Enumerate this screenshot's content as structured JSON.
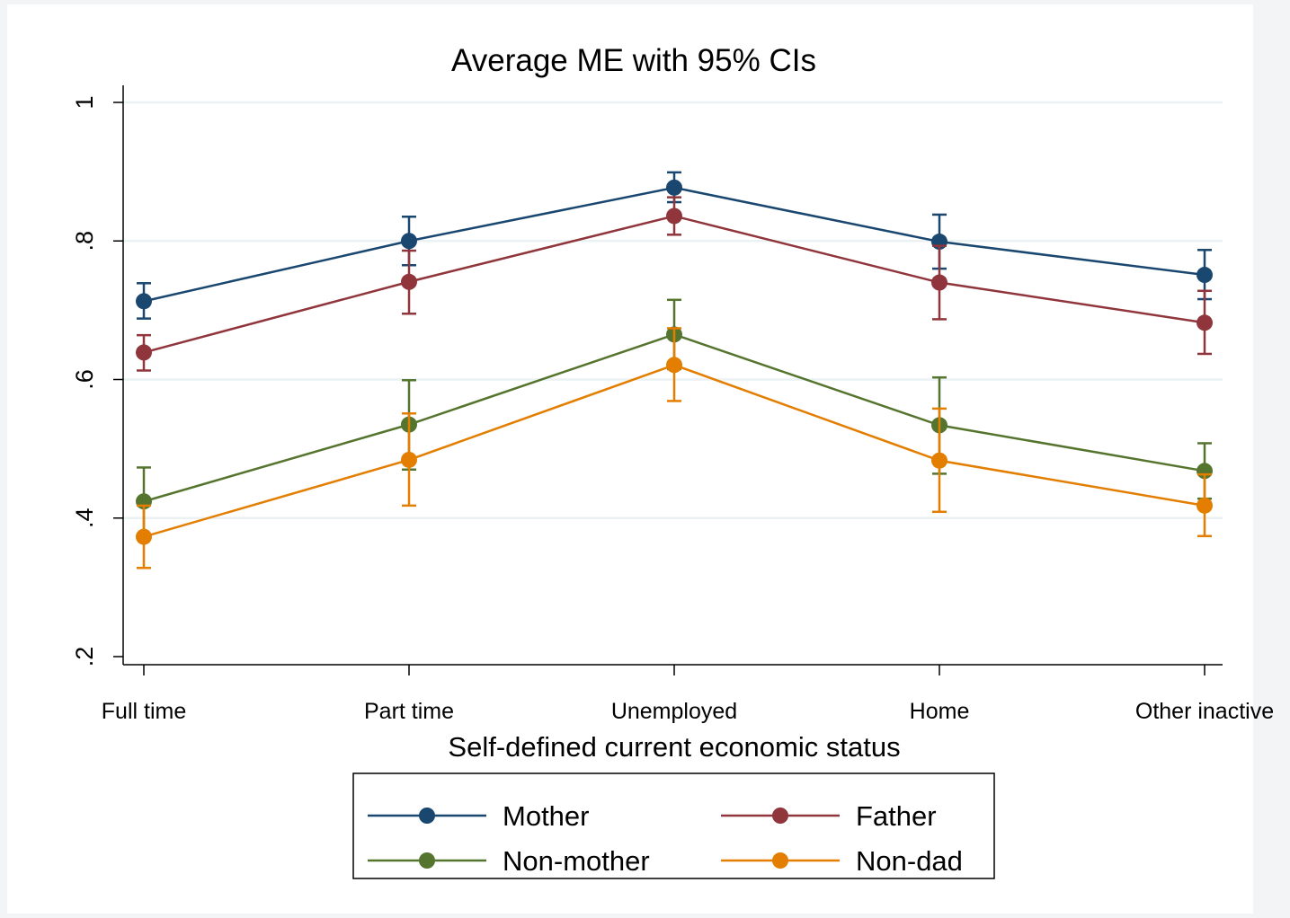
{
  "chart_data": {
    "type": "line",
    "title": "Average ME with 95% CIs",
    "xlabel": "Self-defined current economic status",
    "ylabel": "",
    "categories": [
      "Full time",
      "Part time",
      "Unemployed",
      "Home",
      "Other inactive"
    ],
    "ylim": [
      0.2,
      1.0
    ],
    "yticks": [
      0.2,
      0.4,
      0.6,
      0.8,
      1.0
    ],
    "ytick_labels": [
      ".2",
      ".4",
      ".6",
      ".8",
      "1"
    ],
    "grid": true,
    "legend_placement": "bottom",
    "series": [
      {
        "name": "Mother",
        "color": "#1a476f",
        "values": [
          0.713,
          0.8,
          0.877,
          0.799,
          0.751
        ],
        "ci_low": [
          0.688,
          0.765,
          0.856,
          0.76,
          0.716
        ],
        "ci_high": [
          0.739,
          0.835,
          0.899,
          0.838,
          0.787
        ]
      },
      {
        "name": "Father",
        "color": "#90353b",
        "values": [
          0.639,
          0.741,
          0.836,
          0.74,
          0.682
        ],
        "ci_low": [
          0.613,
          0.695,
          0.809,
          0.687,
          0.637
        ],
        "ci_high": [
          0.664,
          0.786,
          0.863,
          0.793,
          0.728
        ]
      },
      {
        "name": "Non-mother",
        "color": "#55752f",
        "values": [
          0.424,
          0.535,
          0.665,
          0.534,
          0.468
        ],
        "ci_low": [
          0.376,
          0.47,
          0.615,
          0.464,
          0.428
        ],
        "ci_high": [
          0.473,
          0.599,
          0.715,
          0.603,
          0.508
        ]
      },
      {
        "name": "Non-dad",
        "color": "#e37e00",
        "values": [
          0.373,
          0.484,
          0.621,
          0.483,
          0.418
        ],
        "ci_low": [
          0.328,
          0.418,
          0.569,
          0.409,
          0.374
        ],
        "ci_high": [
          0.418,
          0.551,
          0.674,
          0.558,
          0.463
        ]
      }
    ]
  }
}
